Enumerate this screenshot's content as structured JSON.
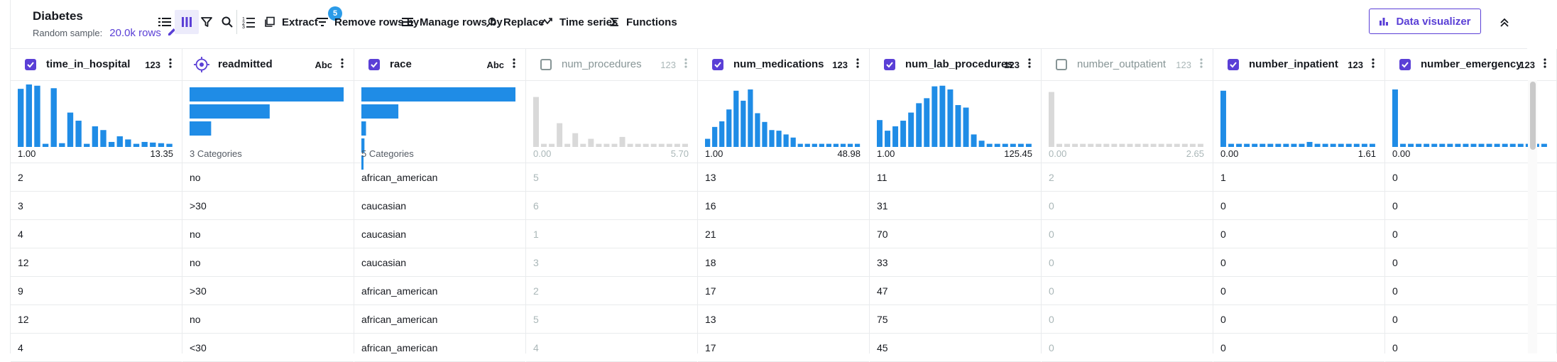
{
  "dataset": {
    "title": "Diabetes",
    "sample_label": "Random sample:",
    "sample_value": "20.0k rows"
  },
  "toolbar": {
    "badge_count": "5",
    "extract": "Extract",
    "remove_rows": "Remove rows by",
    "manage_rows": "Manage rows by",
    "replace": "Replace",
    "time_series": "Time series",
    "functions": "Functions",
    "data_visualizer": "Data visualizer"
  },
  "columns": [
    {
      "name": "time_in_hospital",
      "type": "123",
      "checked": true,
      "muted": false,
      "kind": "num",
      "min": "1.00",
      "max": "13.35",
      "bars": [
        0.93,
        1.0,
        0.98,
        0.05,
        0.94,
        0.06,
        0.55,
        0.42,
        0.05,
        0.33,
        0.27,
        0.08,
        0.17,
        0.12,
        0.05,
        0.08,
        0.07,
        0.06,
        0.05
      ]
    },
    {
      "name": "readmitted",
      "type": "Abc",
      "checked": false,
      "target": true,
      "muted": false,
      "kind": "cat",
      "categories_label": "3 Categories",
      "bars": [
        1.0,
        0.52,
        0.14
      ]
    },
    {
      "name": "race",
      "type": "Abc",
      "checked": true,
      "muted": false,
      "kind": "cat",
      "categories_label": "5 Categories",
      "bars": [
        1.0,
        0.24,
        0.03,
        0.02,
        0.01
      ]
    },
    {
      "name": "num_procedures",
      "type": "123",
      "checked": false,
      "muted": true,
      "kind": "num",
      "min": "0.00",
      "max": "5.70",
      "bars": [
        0.8,
        0.05,
        0.05,
        0.38,
        0.05,
        0.22,
        0.05,
        0.13,
        0.05,
        0.05,
        0.05,
        0.16,
        0.05,
        0.05,
        0.05,
        0.05,
        0.05,
        0.05,
        0.05,
        0.05
      ]
    },
    {
      "name": "num_medications",
      "type": "123",
      "checked": true,
      "muted": false,
      "kind": "num",
      "min": "1.00",
      "max": "48.98",
      "bars": [
        0.13,
        0.32,
        0.41,
        0.6,
        0.9,
        0.74,
        0.92,
        0.54,
        0.4,
        0.27,
        0.26,
        0.2,
        0.15,
        0.05,
        0.05,
        0.05,
        0.05,
        0.05,
        0.05,
        0.05,
        0.05,
        0.05
      ]
    },
    {
      "name": "num_lab_procedures",
      "type": "123",
      "checked": true,
      "muted": false,
      "kind": "num",
      "min": "1.00",
      "max": "125.45",
      "bars": [
        0.43,
        0.26,
        0.33,
        0.42,
        0.55,
        0.7,
        0.78,
        0.97,
        0.98,
        0.92,
        0.67,
        0.63,
        0.2,
        0.1,
        0.05,
        0.05,
        0.05,
        0.05,
        0.05,
        0.05
      ]
    },
    {
      "name": "number_outpatient",
      "type": "123",
      "checked": false,
      "muted": true,
      "kind": "num",
      "min": "0.00",
      "max": "2.65",
      "bars": [
        0.88,
        0.05,
        0.05,
        0.05,
        0.05,
        0.05,
        0.05,
        0.05,
        0.05,
        0.05,
        0.05,
        0.05,
        0.05,
        0.05,
        0.05,
        0.05,
        0.05,
        0.05,
        0.05,
        0.05
      ]
    },
    {
      "name": "number_inpatient",
      "type": "123",
      "checked": true,
      "muted": false,
      "kind": "num",
      "min": "0.00",
      "max": "1.61",
      "bars": [
        0.9,
        0.05,
        0.05,
        0.05,
        0.05,
        0.05,
        0.05,
        0.05,
        0.05,
        0.05,
        0.05,
        0.08,
        0.05,
        0.05,
        0.05,
        0.05,
        0.05,
        0.05,
        0.05,
        0.05
      ]
    },
    {
      "name": "number_emergency",
      "type": "123",
      "checked": true,
      "muted": false,
      "kind": "num",
      "min": "0.00",
      "max": "",
      "bars": [
        0.92,
        0.05,
        0.05,
        0.05,
        0.05,
        0.05,
        0.05,
        0.05,
        0.05,
        0.05,
        0.05,
        0.05,
        0.05,
        0.05,
        0.05,
        0.05,
        0.05,
        0.05,
        0.05,
        0.05
      ]
    }
  ],
  "rows": [
    [
      "2",
      "no",
      "african_american",
      "5",
      "13",
      "11",
      "2",
      "1",
      "0"
    ],
    [
      "3",
      ">30",
      "caucasian",
      "6",
      "16",
      "31",
      "0",
      "0",
      "0"
    ],
    [
      "4",
      "no",
      "caucasian",
      "1",
      "21",
      "70",
      "0",
      "0",
      "0"
    ],
    [
      "12",
      "no",
      "caucasian",
      "3",
      "18",
      "33",
      "0",
      "0",
      "0"
    ],
    [
      "9",
      ">30",
      "african_american",
      "2",
      "17",
      "47",
      "0",
      "0",
      "0"
    ],
    [
      "12",
      "no",
      "african_american",
      "5",
      "13",
      "75",
      "0",
      "0",
      "0"
    ],
    [
      "4",
      "<30",
      "african_american",
      "4",
      "17",
      "45",
      "0",
      "0",
      "0"
    ]
  ],
  "colors": {
    "accent": "#5a3fd6",
    "bar": "#1f8ce6",
    "bar_muted": "#d9d9d9",
    "badge": "#2b9be8"
  }
}
